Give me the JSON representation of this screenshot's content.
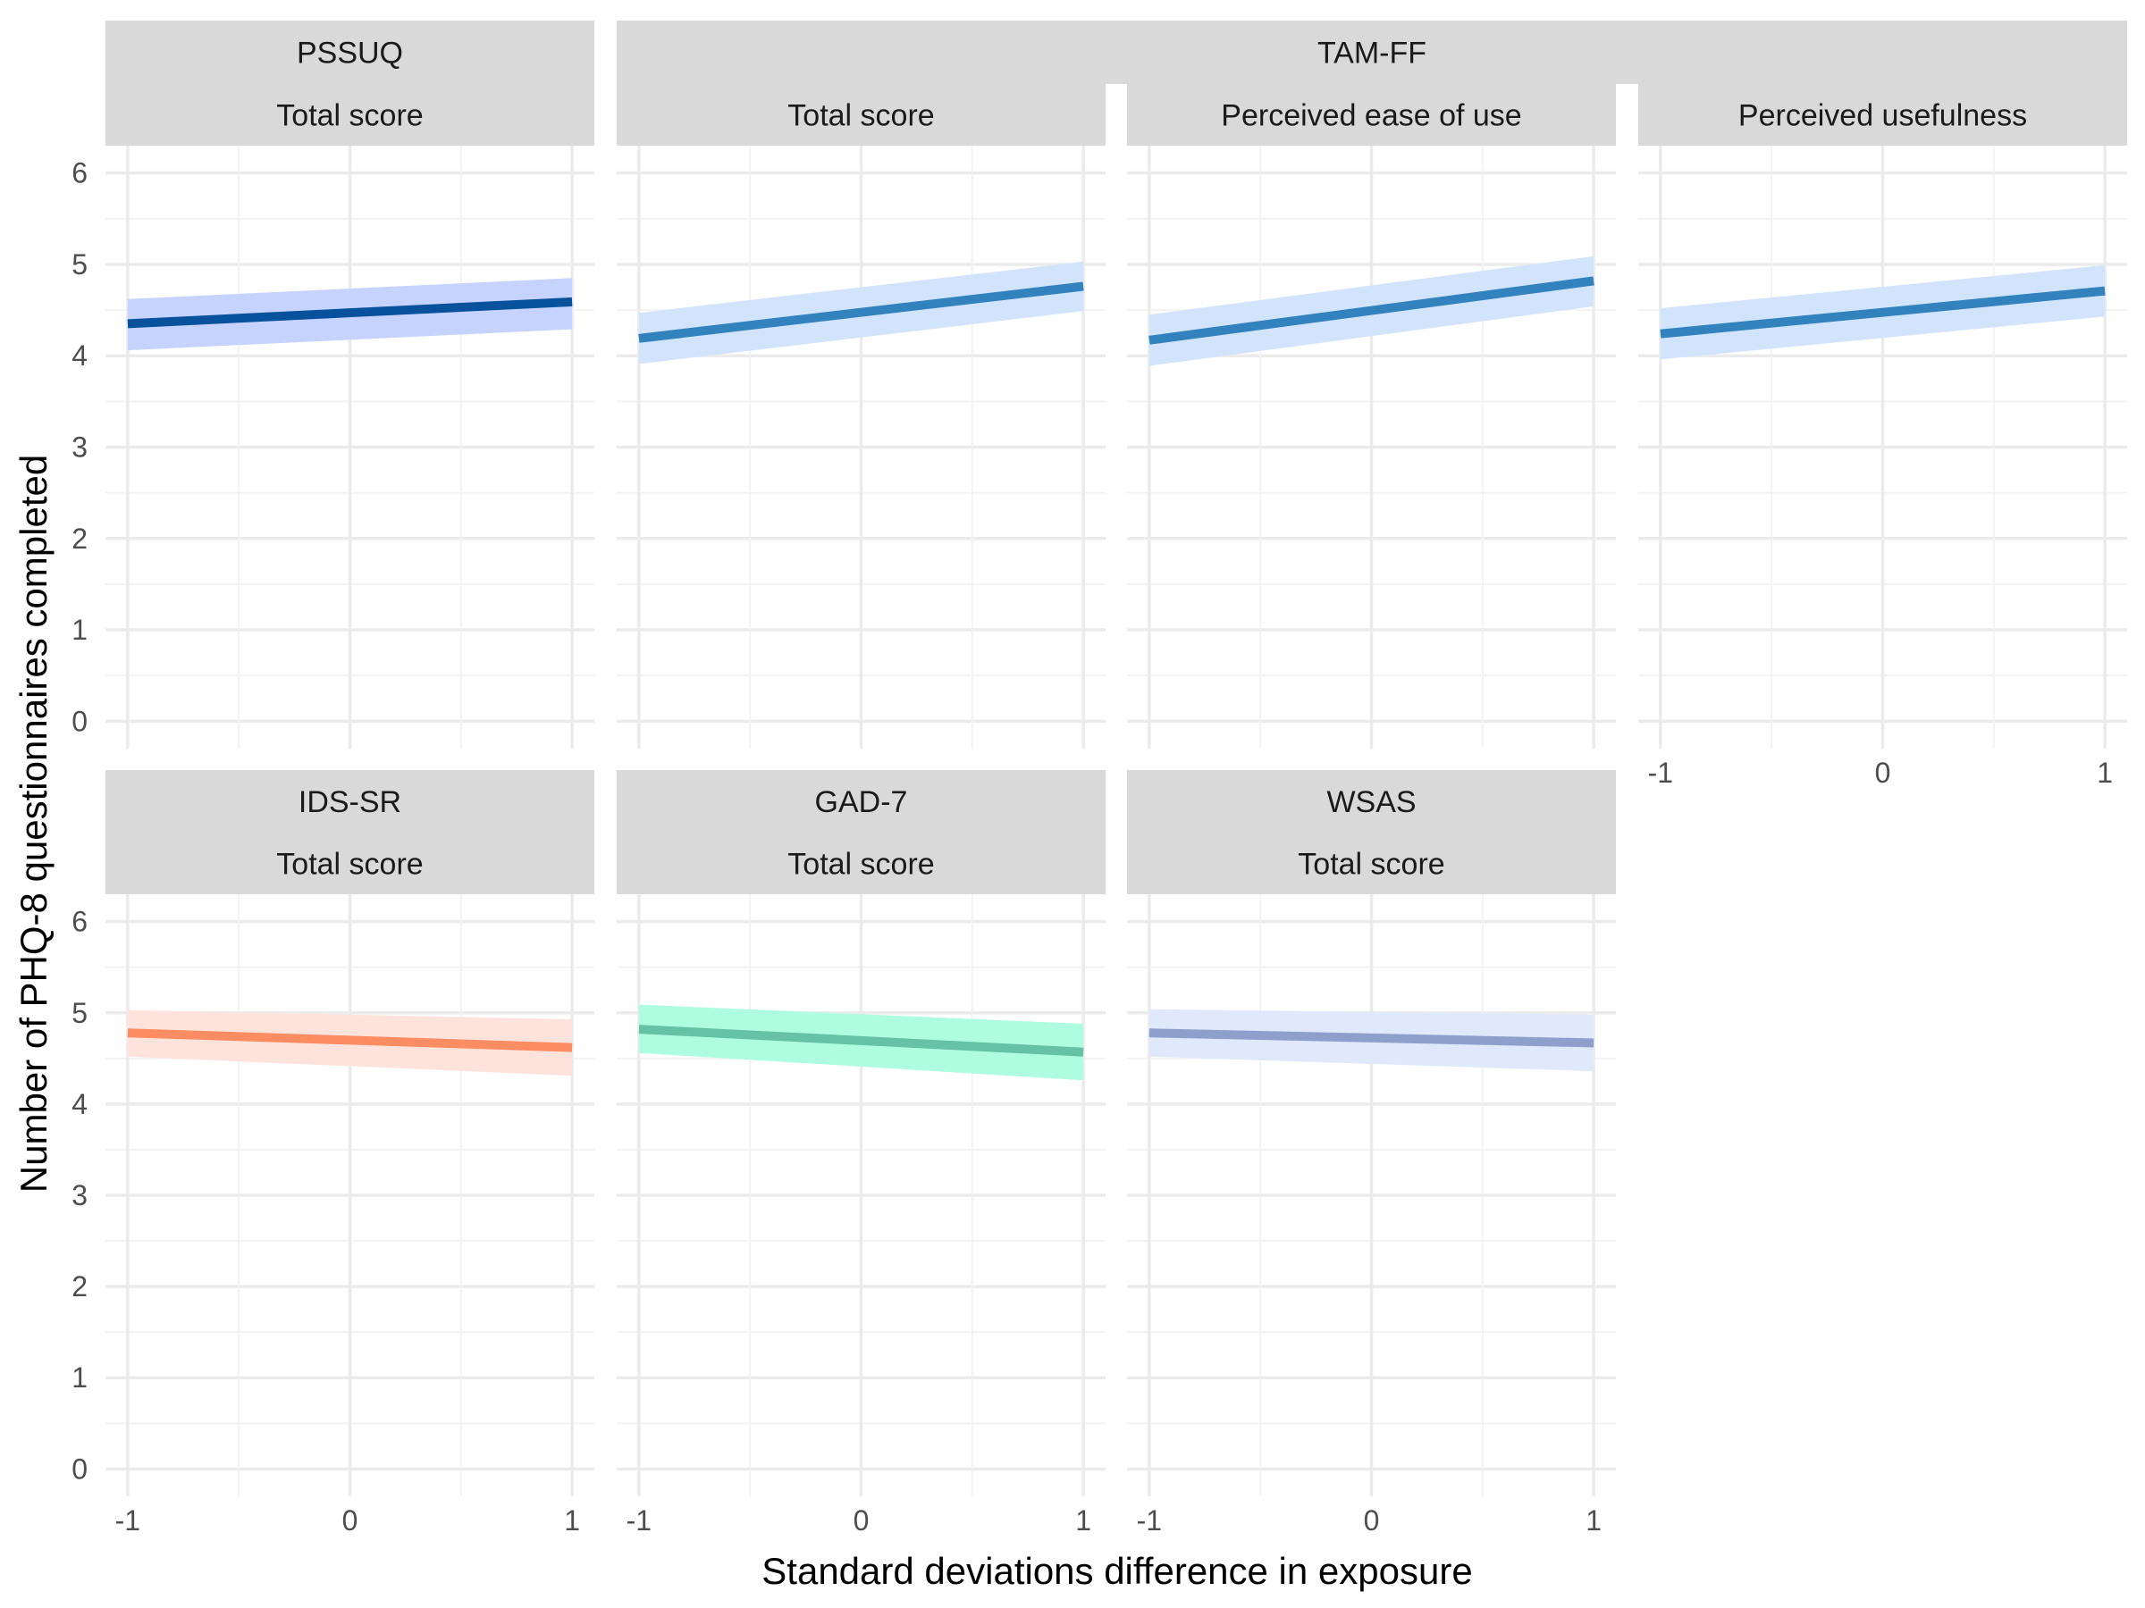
{
  "chart_data": {
    "type": "line",
    "xlabel": "Standard deviations difference in exposure",
    "ylabel": "Number of PHQ-8 questionnaires completed",
    "xlim": [
      -1.1,
      1.1
    ],
    "ylim": [
      -0.3,
      6.3
    ],
    "x_ticks": [
      "-1",
      "0",
      "1"
    ],
    "y_ticks": [
      "0",
      "1",
      "2",
      "3",
      "4",
      "5",
      "6"
    ],
    "grid": true,
    "legend": "none",
    "groups": [
      {
        "name": "PSSUQ",
        "panels": [
          0
        ]
      },
      {
        "name": "TAM-FF",
        "panels": [
          1,
          2,
          3
        ]
      },
      {
        "name": "IDS-SR",
        "panels": [
          4
        ]
      },
      {
        "name": "GAD-7",
        "panels": [
          5
        ]
      },
      {
        "name": "WSAS",
        "panels": [
          6
        ]
      }
    ],
    "panels": [
      {
        "subtitle": "Total score",
        "line_color": "#08519c",
        "band_color": "#c6d3ff",
        "x": [
          -1,
          1
        ],
        "y": [
          4.35,
          4.59
        ],
        "lower": [
          4.06,
          4.29
        ],
        "upper": [
          4.62,
          4.85
        ]
      },
      {
        "subtitle": "Total score",
        "line_color": "#3182bd",
        "band_color": "#d2e4fb",
        "x": [
          -1,
          1
        ],
        "y": [
          4.19,
          4.76
        ],
        "lower": [
          3.91,
          4.49
        ],
        "upper": [
          4.47,
          5.03
        ]
      },
      {
        "subtitle": "Perceived ease of use",
        "line_color": "#3182bd",
        "band_color": "#d2e4fb",
        "x": [
          -1,
          1
        ],
        "y": [
          4.17,
          4.82
        ],
        "lower": [
          3.89,
          4.54
        ],
        "upper": [
          4.45,
          5.09
        ]
      },
      {
        "subtitle": "Perceived usefulness",
        "line_color": "#3182bd",
        "band_color": "#d2e4fb",
        "x": [
          -1,
          1
        ],
        "y": [
          4.24,
          4.71
        ],
        "lower": [
          3.96,
          4.43
        ],
        "upper": [
          4.52,
          4.99
        ]
      },
      {
        "subtitle": "Total score",
        "line_color": "#fc8d62",
        "band_color": "#fee3dd",
        "x": [
          -1,
          1
        ],
        "y": [
          4.78,
          4.62
        ],
        "lower": [
          4.52,
          4.31
        ],
        "upper": [
          5.03,
          4.93
        ]
      },
      {
        "subtitle": "Total score",
        "line_color": "#66c2a5",
        "band_color": "#aefde0",
        "x": [
          -1,
          1
        ],
        "y": [
          4.82,
          4.57
        ],
        "lower": [
          4.56,
          4.26
        ],
        "upper": [
          5.09,
          4.88
        ]
      },
      {
        "subtitle": "Total score",
        "line_color": "#8da0cb",
        "band_color": "#e0e8fb",
        "x": [
          -1,
          1
        ],
        "y": [
          4.78,
          4.67
        ],
        "lower": [
          4.52,
          4.36
        ],
        "upper": [
          5.04,
          4.98
        ]
      }
    ]
  }
}
